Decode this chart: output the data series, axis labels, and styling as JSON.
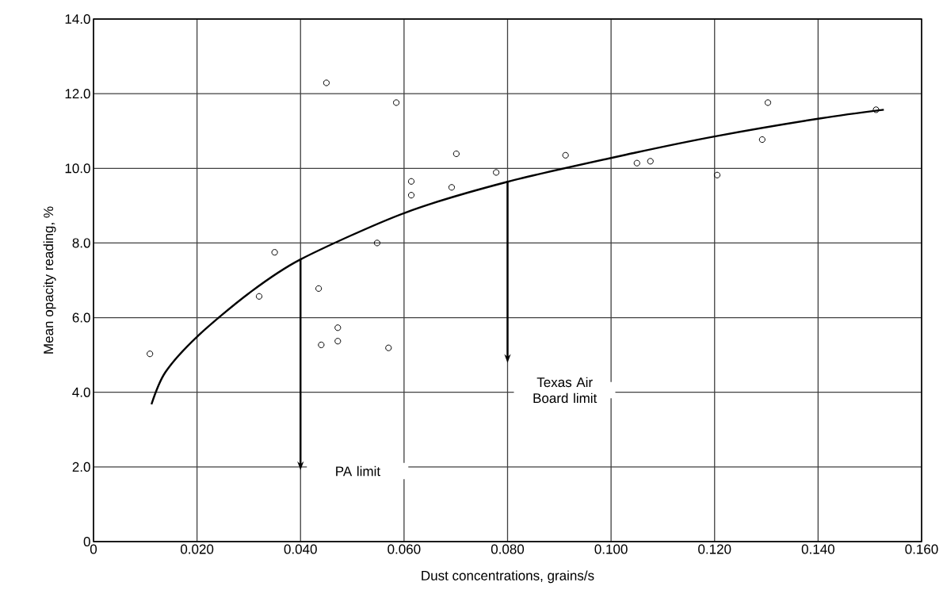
{
  "chart_data": {
    "type": "scatter",
    "xlabel": "Dust concentrations, grains/s",
    "ylabel": "Mean opacity reading, %",
    "xlim": [
      0,
      0.16
    ],
    "ylim": [
      0,
      14
    ],
    "xticks": [
      0,
      {
        "value": 0.02,
        "label": "0.020"
      },
      {
        "value": 0.04,
        "label": "0.040"
      },
      {
        "value": 0.06,
        "label": "0.060"
      },
      {
        "value": 0.08,
        "label": "0.080"
      },
      {
        "value": 0.1,
        "label": "0.100"
      },
      {
        "value": 0.12,
        "label": "0.120"
      },
      {
        "value": 0.14,
        "label": "0.140"
      },
      {
        "value": 0.16,
        "label": "0.160"
      }
    ],
    "yticks": [
      0,
      {
        "value": 2,
        "label": "2.0"
      },
      {
        "value": 4,
        "label": "4.0"
      },
      {
        "value": 6,
        "label": "6.0"
      },
      {
        "value": 8,
        "label": "8.0"
      },
      {
        "value": 10,
        "label": "10.0"
      },
      {
        "value": 12,
        "label": "12.0"
      },
      {
        "value": 14,
        "label": "14.0"
      }
    ],
    "grid": true,
    "series": [
      {
        "type": "scatter",
        "marker": "circle",
        "color": "#000000",
        "x": [
          0.0109,
          0.032,
          0.035,
          0.0435,
          0.044,
          0.045,
          0.0472,
          0.0472,
          0.0548,
          0.057,
          0.0585,
          0.0614,
          0.0614,
          0.0692,
          0.0701,
          0.0778,
          0.0912,
          0.105,
          0.1076,
          0.1205,
          0.1292,
          0.1303,
          0.1512
        ],
        "values": [
          5.03,
          6.57,
          7.75,
          6.78,
          5.27,
          12.29,
          5.73,
          5.37,
          8.0,
          5.19,
          11.76,
          9.65,
          9.28,
          9.49,
          10.39,
          9.89,
          10.35,
          10.14,
          10.19,
          9.82,
          10.77,
          11.76,
          11.57
        ]
      },
      {
        "type": "line",
        "marker": "none",
        "color": "#000000",
        "x": [
          0.0112,
          0.0139,
          0.0201,
          0.03,
          0.04,
          0.06,
          0.08,
          0.1047,
          0.1206,
          0.1405,
          0.1527
        ],
        "values": [
          3.68,
          4.54,
          5.5,
          6.65,
          7.56,
          8.8,
          9.64,
          10.42,
          10.87,
          11.34,
          11.57
        ]
      }
    ],
    "ref_lines": [
      {
        "axis": "x",
        "value": 0.04,
        "label": "PA limit"
      },
      {
        "axis": "x",
        "value": 0.08,
        "label": "Texas Air Board limit"
      }
    ]
  }
}
